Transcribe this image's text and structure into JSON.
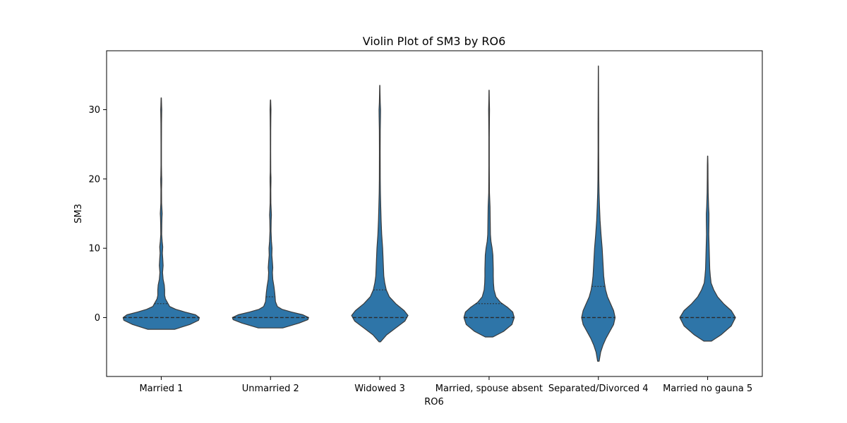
{
  "chart_data": {
    "type": "violin",
    "title": "Violin Plot of SM3 by RO6",
    "xlabel": "RO6",
    "ylabel": "SM3",
    "ylim": [
      -8.5,
      38.5
    ],
    "yticks": [
      0,
      10,
      20,
      30
    ],
    "grid": false,
    "color": "#2e75a8",
    "categories": [
      "Married 1",
      "Unmarried 2",
      "Widowed 3",
      "Married, spouse absent",
      "Separated/Divorced 4",
      "Married no gauna 5"
    ],
    "violins": [
      {
        "category": "Married 1",
        "min": -1.7,
        "max": 31.7,
        "median": 0,
        "q1": 0,
        "q3": 2,
        "profile": [
          [
            -1.7,
            0.35
          ],
          [
            -1.0,
            0.75
          ],
          [
            -0.4,
            0.98
          ],
          [
            0,
            1.0
          ],
          [
            0.4,
            0.9
          ],
          [
            0.8,
            0.62
          ],
          [
            1.2,
            0.38
          ],
          [
            1.6,
            0.22
          ],
          [
            2.2,
            0.16
          ],
          [
            2.7,
            0.11
          ],
          [
            3.2,
            0.09
          ],
          [
            4,
            0.09
          ],
          [
            4.7,
            0.08
          ],
          [
            5.5,
            0.05
          ],
          [
            6.5,
            0.035
          ],
          [
            7.5,
            0.05
          ],
          [
            8.5,
            0.04
          ],
          [
            9.3,
            0.03
          ],
          [
            10.2,
            0.04
          ],
          [
            11,
            0.025
          ],
          [
            12,
            0.012
          ],
          [
            13.5,
            0.015
          ],
          [
            14.5,
            0.02
          ],
          [
            15,
            0.025
          ],
          [
            15.5,
            0.02
          ],
          [
            16.5,
            0.01
          ],
          [
            18.5,
            0.008
          ],
          [
            19.5,
            0.013
          ],
          [
            20,
            0.014
          ],
          [
            20.5,
            0.01
          ],
          [
            22,
            0.006
          ],
          [
            25,
            0.006
          ],
          [
            28,
            0.008
          ],
          [
            29.5,
            0.012
          ],
          [
            30,
            0.014
          ],
          [
            30.5,
            0.01
          ],
          [
            31.7,
            0.004
          ]
        ]
      },
      {
        "category": "Unmarried 2",
        "min": -1.5,
        "max": 31.4,
        "median": 0,
        "q1": 0,
        "q3": 3,
        "profile": [
          [
            -1.5,
            0.32
          ],
          [
            -0.8,
            0.75
          ],
          [
            -0.3,
            0.98
          ],
          [
            0,
            1.0
          ],
          [
            0.4,
            0.85
          ],
          [
            0.8,
            0.55
          ],
          [
            1.2,
            0.3
          ],
          [
            1.6,
            0.18
          ],
          [
            2.3,
            0.13
          ],
          [
            3,
            0.12
          ],
          [
            3.6,
            0.11
          ],
          [
            4.5,
            0.09
          ],
          [
            5.5,
            0.06
          ],
          [
            6.5,
            0.05
          ],
          [
            7.2,
            0.06
          ],
          [
            8,
            0.05
          ],
          [
            9,
            0.035
          ],
          [
            10,
            0.04
          ],
          [
            11,
            0.025
          ],
          [
            12.5,
            0.014
          ],
          [
            14,
            0.018
          ],
          [
            14.8,
            0.024
          ],
          [
            15.3,
            0.02
          ],
          [
            16.5,
            0.01
          ],
          [
            18.5,
            0.008
          ],
          [
            19.6,
            0.012
          ],
          [
            20.2,
            0.012
          ],
          [
            21,
            0.007
          ],
          [
            24,
            0.005
          ],
          [
            27,
            0.006
          ],
          [
            29,
            0.009
          ],
          [
            30,
            0.012
          ],
          [
            31.4,
            0.004
          ]
        ]
      },
      {
        "category": "Widowed 3",
        "min": -3.5,
        "max": 33.5,
        "median": 0,
        "q1": 0,
        "q3": 4,
        "profile": [
          [
            -3.5,
            0.02
          ],
          [
            -2.5,
            0.18
          ],
          [
            -1.5,
            0.42
          ],
          [
            -0.5,
            0.66
          ],
          [
            0.3,
            0.74
          ],
          [
            1,
            0.64
          ],
          [
            2,
            0.42
          ],
          [
            3,
            0.25
          ],
          [
            4,
            0.17
          ],
          [
            5,
            0.13
          ],
          [
            6,
            0.105
          ],
          [
            8,
            0.09
          ],
          [
            10,
            0.075
          ],
          [
            12,
            0.05
          ],
          [
            14,
            0.035
          ],
          [
            16,
            0.025
          ],
          [
            18,
            0.016
          ],
          [
            20,
            0.012
          ],
          [
            24,
            0.01
          ],
          [
            27,
            0.012
          ],
          [
            29,
            0.018
          ],
          [
            30,
            0.02
          ],
          [
            31,
            0.012
          ],
          [
            32.5,
            0.006
          ],
          [
            33.5,
            0.003
          ]
        ]
      },
      {
        "category": "Married, spouse absent",
        "min": -2.8,
        "max": 32.8,
        "median": 0,
        "q1": 0,
        "q3": 2,
        "profile": [
          [
            -2.8,
            0.1
          ],
          [
            -2,
            0.38
          ],
          [
            -1,
            0.6
          ],
          [
            0,
            0.66
          ],
          [
            0.8,
            0.62
          ],
          [
            1.5,
            0.48
          ],
          [
            2.2,
            0.3
          ],
          [
            3,
            0.18
          ],
          [
            4,
            0.13
          ],
          [
            5,
            0.115
          ],
          [
            6,
            0.11
          ],
          [
            7,
            0.11
          ],
          [
            8,
            0.105
          ],
          [
            9,
            0.1
          ],
          [
            10,
            0.08
          ],
          [
            11,
            0.05
          ],
          [
            12,
            0.035
          ],
          [
            14,
            0.03
          ],
          [
            16,
            0.025
          ],
          [
            18,
            0.01
          ],
          [
            22,
            0.006
          ],
          [
            26,
            0.006
          ],
          [
            29,
            0.01
          ],
          [
            30,
            0.012
          ],
          [
            31.5,
            0.006
          ],
          [
            32.8,
            0.003
          ]
        ]
      },
      {
        "category": "Separated/Divorced 4",
        "min": -6.3,
        "max": 36.3,
        "median": 0,
        "q1": 0,
        "q3": 4.5,
        "profile": [
          [
            -6.3,
            0.02
          ],
          [
            -5,
            0.06
          ],
          [
            -4,
            0.12
          ],
          [
            -3,
            0.2
          ],
          [
            -2,
            0.3
          ],
          [
            -1,
            0.4
          ],
          [
            0,
            0.44
          ],
          [
            1,
            0.4
          ],
          [
            2,
            0.32
          ],
          [
            3,
            0.24
          ],
          [
            4,
            0.19
          ],
          [
            5,
            0.16
          ],
          [
            6,
            0.14
          ],
          [
            8,
            0.12
          ],
          [
            10,
            0.1
          ],
          [
            12,
            0.07
          ],
          [
            14,
            0.045
          ],
          [
            16,
            0.03
          ],
          [
            18,
            0.018
          ],
          [
            20,
            0.012
          ],
          [
            24,
            0.008
          ],
          [
            28,
            0.008
          ],
          [
            31,
            0.006
          ],
          [
            34,
            0.004
          ],
          [
            36.3,
            0.002
          ]
        ]
      },
      {
        "category": "Married no gauna 5",
        "min": -3.4,
        "max": 23.3,
        "median": 0,
        "q1": 0,
        "q3": 0,
        "profile": [
          [
            -3.4,
            0.1
          ],
          [
            -2.5,
            0.35
          ],
          [
            -1.2,
            0.62
          ],
          [
            0,
            0.73
          ],
          [
            1,
            0.62
          ],
          [
            2,
            0.42
          ],
          [
            3,
            0.26
          ],
          [
            4,
            0.16
          ],
          [
            5,
            0.09
          ],
          [
            6,
            0.07
          ],
          [
            7,
            0.055
          ],
          [
            8,
            0.05
          ],
          [
            10,
            0.04
          ],
          [
            12,
            0.03
          ],
          [
            14,
            0.035
          ],
          [
            15,
            0.035
          ],
          [
            16,
            0.025
          ],
          [
            18,
            0.014
          ],
          [
            20,
            0.01
          ],
          [
            22,
            0.008
          ],
          [
            23.3,
            0.003
          ]
        ]
      }
    ]
  }
}
